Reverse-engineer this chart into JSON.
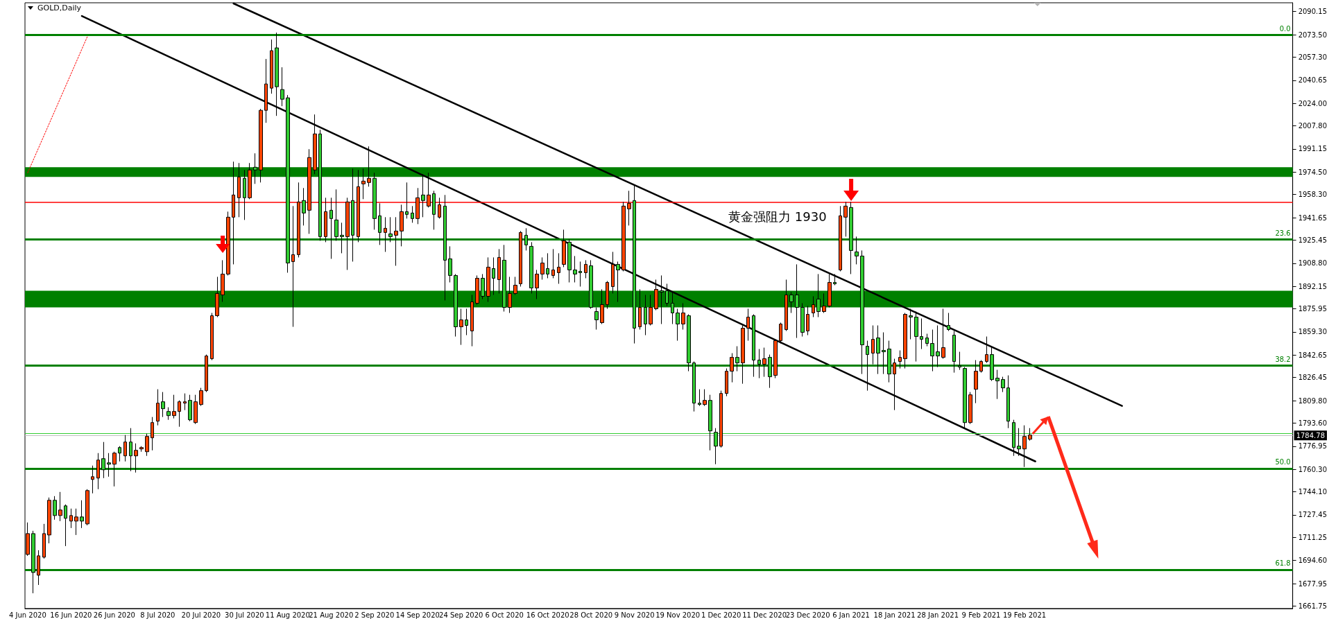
{
  "chart_data": {
    "type": "candlestick",
    "title": "GOLD,Daily",
    "categories": [
      "4 Jun 2020",
      null,
      null,
      null,
      null,
      null,
      null,
      null,
      "16 Jun 2020",
      null,
      null,
      null,
      null,
      null,
      null,
      null,
      "26 Jun 2020",
      null,
      null,
      null,
      null,
      null,
      null,
      null,
      "8 Jul 2020",
      null,
      null,
      null,
      null,
      null,
      null,
      null,
      "20 Jul 2020",
      null,
      null,
      null,
      null,
      null,
      null,
      null,
      "30 Jul 2020",
      null,
      null,
      null,
      null,
      null,
      null,
      null,
      "11 Aug 2020",
      null,
      null,
      null,
      null,
      null,
      null,
      null,
      "21 Aug 2020",
      null,
      null,
      null,
      null,
      null,
      null,
      null,
      "2 Sep 2020",
      null,
      null,
      null,
      null,
      null,
      null,
      null,
      "14 Sep 2020",
      null,
      null,
      null,
      null,
      null,
      null,
      null,
      "24 Sep 2020",
      null,
      null,
      null,
      null,
      null,
      null,
      null,
      "6 Oct 2020",
      null,
      null,
      null,
      null,
      null,
      null,
      null,
      "16 Oct 2020",
      null,
      null,
      null,
      null,
      null,
      null,
      null,
      "28 Oct 2020",
      null,
      null,
      null,
      null,
      null,
      null,
      null,
      "9 Nov 2020",
      null,
      null,
      null,
      null,
      null,
      null,
      null,
      "19 Nov 2020",
      null,
      null,
      null,
      null,
      null,
      null,
      null,
      "1 Dec 2020",
      null,
      null,
      null,
      null,
      null,
      null,
      null,
      "11 Dec 2020",
      null,
      null,
      null,
      null,
      null,
      null,
      null,
      "23 Dec 2020",
      null,
      null,
      null,
      null,
      null,
      null,
      null,
      "6 Jan 2021",
      null,
      null,
      null,
      null,
      null,
      null,
      null,
      "18 Jan 2021",
      null,
      null,
      null,
      null,
      null,
      null,
      null,
      "28 Jan 2021",
      null,
      null,
      null,
      null,
      null,
      null,
      null,
      "9 Feb 2021",
      null,
      null,
      null,
      null,
      null,
      null,
      null,
      "19 Feb 2021",
      null,
      null,
      null,
      null,
      null,
      null,
      null,
      null,
      null,
      null,
      null,
      null,
      null,
      null,
      null,
      null,
      null,
      null,
      null,
      null,
      null,
      null,
      null,
      null,
      null,
      null,
      null,
      null,
      null,
      null,
      null,
      null,
      null,
      null,
      null,
      null,
      null,
      null,
      null,
      null,
      null,
      null,
      null,
      null,
      null,
      null,
      null,
      null,
      null
    ],
    "ohlc": [
      [
        1699,
        1722,
        1698,
        1714
      ],
      [
        1714,
        1716,
        1671,
        1686
      ],
      [
        1684,
        1702,
        1677,
        1698
      ],
      [
        1697,
        1721,
        1696,
        1714
      ],
      [
        1713,
        1740,
        1707,
        1738
      ],
      [
        1738,
        1741,
        1724,
        1727
      ],
      [
        1727,
        1744,
        1723,
        1731
      ],
      [
        1734,
        1735,
        1705,
        1725
      ],
      [
        1723,
        1732,
        1718,
        1727
      ],
      [
        1723,
        1732,
        1713,
        1726
      ],
      [
        1726,
        1738,
        1718,
        1723
      ],
      [
        1721,
        1746,
        1720,
        1745
      ],
      [
        1753,
        1763,
        1743,
        1755
      ],
      [
        1754,
        1772,
        1746,
        1767
      ],
      [
        1768,
        1780,
        1754,
        1760
      ],
      [
        1765,
        1772,
        1755,
        1764
      ],
      [
        1764,
        1773,
        1748,
        1772
      ],
      [
        1776,
        1777,
        1766,
        1772
      ],
      [
        1770,
        1785,
        1766,
        1780
      ],
      [
        1780,
        1790,
        1759,
        1770
      ],
      [
        1770,
        1779,
        1758,
        1774
      ],
      [
        1775,
        1777,
        1773,
        1776
      ],
      [
        1773,
        1786,
        1770,
        1784
      ],
      [
        1783,
        1798,
        1774,
        1794
      ],
      [
        1795,
        1818,
        1792,
        1808
      ],
      [
        1809,
        1816,
        1798,
        1804
      ],
      [
        1802,
        1805,
        1796,
        1799
      ],
      [
        1799,
        1814,
        1797,
        1802
      ],
      [
        1802,
        1810,
        1791,
        1809
      ],
      [
        1808,
        1815,
        1803,
        1809
      ],
      [
        1810,
        1814,
        1795,
        1796
      ],
      [
        1794,
        1814,
        1793,
        1809
      ],
      [
        1807,
        1819,
        1806,
        1817
      ],
      [
        1817,
        1843,
        1816,
        1842
      ],
      [
        1840,
        1873,
        1839,
        1871
      ],
      [
        1871,
        1899,
        1870,
        1887
      ],
      [
        1886,
        1911,
        1881,
        1901
      ],
      [
        1901,
        1946,
        1900,
        1942
      ],
      [
        1942,
        1982,
        1908,
        1958
      ],
      [
        1956,
        1981,
        1942,
        1971
      ],
      [
        1970,
        1976,
        1940,
        1956
      ],
      [
        1956,
        1981,
        1955,
        1976
      ],
      [
        1978,
        1988,
        1966,
        1976
      ],
      [
        1976,
        2020,
        1967,
        2019
      ],
      [
        2019,
        2056,
        2010,
        2038
      ],
      [
        2035,
        2070,
        2031,
        2062
      ],
      [
        2064,
        2075,
        2015,
        2036
      ],
      [
        2034,
        2050,
        2022,
        2027
      ],
      [
        2028,
        2030,
        1902,
        1909
      ],
      [
        1910,
        1950,
        1863,
        1915
      ],
      [
        1915,
        1967,
        1913,
        1953
      ],
      [
        1954,
        1963,
        1936,
        1945
      ],
      [
        1947,
        1991,
        1930,
        1985
      ],
      [
        1976,
        2016,
        1973,
        2002
      ],
      [
        2002,
        2005,
        1925,
        1928
      ],
      [
        1928,
        1956,
        1924,
        1946
      ],
      [
        1947,
        1956,
        1912,
        1941
      ],
      [
        1940,
        1962,
        1925,
        1928
      ],
      [
        1929,
        1938,
        1916,
        1928
      ],
      [
        1928,
        1956,
        1904,
        1953
      ],
      [
        1954,
        1977,
        1910,
        1929
      ],
      [
        1928,
        1976,
        1924,
        1964
      ],
      [
        1966,
        1977,
        1955,
        1968
      ],
      [
        1967,
        1993,
        1964,
        1970
      ],
      [
        1970,
        1974,
        1933,
        1941
      ],
      [
        1943,
        1952,
        1922,
        1931
      ],
      [
        1931,
        1942,
        1917,
        1934
      ],
      [
        1930,
        1942,
        1924,
        1928
      ],
      [
        1929,
        1942,
        1907,
        1932
      ],
      [
        1932,
        1951,
        1921,
        1946
      ],
      [
        1946,
        1967,
        1941,
        1944
      ],
      [
        1945,
        1950,
        1938,
        1941
      ],
      [
        1941,
        1963,
        1937,
        1956
      ],
      [
        1958,
        1973,
        1942,
        1954
      ],
      [
        1950,
        1974,
        1949,
        1958
      ],
      [
        1959,
        1961,
        1933,
        1944
      ],
      [
        1942,
        1956,
        1941,
        1951
      ],
      [
        1950,
        1958,
        1882,
        1911
      ],
      [
        1912,
        1921,
        1895,
        1900
      ],
      [
        1900,
        1901,
        1856,
        1863
      ],
      [
        1863,
        1876,
        1850,
        1868
      ],
      [
        1868,
        1876,
        1857,
        1864
      ],
      [
        1860,
        1886,
        1849,
        1881
      ],
      [
        1880,
        1900,
        1879,
        1898
      ],
      [
        1898,
        1901,
        1883,
        1885
      ],
      [
        1885,
        1913,
        1881,
        1906
      ],
      [
        1905,
        1913,
        1886,
        1898
      ],
      [
        1897,
        1919,
        1887,
        1913
      ],
      [
        1911,
        1922,
        1874,
        1877
      ],
      [
        1877,
        1899,
        1873,
        1887
      ],
      [
        1887,
        1899,
        1886,
        1893
      ],
      [
        1894,
        1932,
        1892,
        1931
      ],
      [
        1929,
        1934,
        1918,
        1922
      ],
      [
        1921,
        1924,
        1887,
        1891
      ],
      [
        1891,
        1904,
        1883,
        1901
      ],
      [
        1901,
        1913,
        1897,
        1909
      ],
      [
        1905,
        1916,
        1898,
        1901
      ],
      [
        1900,
        1919,
        1898,
        1904
      ],
      [
        1902,
        1916,
        1894,
        1906
      ],
      [
        1908,
        1933,
        1906,
        1925
      ],
      [
        1924,
        1926,
        1895,
        1904
      ],
      [
        1904,
        1914,
        1895,
        1901
      ],
      [
        1903,
        1910,
        1892,
        1902
      ],
      [
        1902,
        1911,
        1898,
        1908
      ],
      [
        1907,
        1911,
        1876,
        1877
      ],
      [
        1874,
        1877,
        1861,
        1868
      ],
      [
        1866,
        1890,
        1865,
        1879
      ],
      [
        1879,
        1896,
        1876,
        1895
      ],
      [
        1892,
        1917,
        1887,
        1908
      ],
      [
        1908,
        1910,
        1881,
        1904
      ],
      [
        1904,
        1953,
        1903,
        1950
      ],
      [
        1948,
        1961,
        1936,
        1952
      ],
      [
        1954,
        1965,
        1851,
        1862
      ],
      [
        1863,
        1890,
        1861,
        1877
      ],
      [
        1877,
        1886,
        1857,
        1865
      ],
      [
        1865,
        1886,
        1864,
        1877
      ],
      [
        1876,
        1897,
        1875,
        1890
      ],
      [
        1889,
        1900,
        1865,
        1888
      ],
      [
        1889,
        1894,
        1878,
        1880
      ],
      [
        1880,
        1888,
        1865,
        1873
      ],
      [
        1873,
        1876,
        1853,
        1865
      ],
      [
        1865,
        1880,
        1861,
        1873
      ],
      [
        1871,
        1872,
        1831,
        1837
      ],
      [
        1837,
        1838,
        1802,
        1808
      ],
      [
        1808,
        1818,
        1806,
        1807
      ],
      [
        1807,
        1818,
        1806,
        1810
      ],
      [
        1810,
        1814,
        1774,
        1788
      ],
      [
        1787,
        1790,
        1764,
        1777
      ],
      [
        1777,
        1817,
        1776,
        1815
      ],
      [
        1815,
        1833,
        1813,
        1831
      ],
      [
        1831,
        1844,
        1823,
        1841
      ],
      [
        1841,
        1849,
        1831,
        1837
      ],
      [
        1837,
        1864,
        1822,
        1862
      ],
      [
        1862,
        1876,
        1853,
        1870
      ],
      [
        1871,
        1872,
        1827,
        1839
      ],
      [
        1839,
        1847,
        1826,
        1836
      ],
      [
        1836,
        1848,
        1827,
        1840
      ],
      [
        1841,
        1843,
        1819,
        1827
      ],
      [
        1828,
        1854,
        1826,
        1853
      ],
      [
        1853,
        1866,
        1851,
        1865
      ],
      [
        1861,
        1897,
        1860,
        1886
      ],
      [
        1886,
        1888,
        1873,
        1881
      ],
      [
        1886,
        1908,
        1855,
        1877
      ],
      [
        1877,
        1880,
        1856,
        1859
      ],
      [
        1860,
        1878,
        1857,
        1872
      ],
      [
        1873,
        1885,
        1870,
        1879
      ],
      [
        1883,
        1901,
        1870,
        1874
      ],
      [
        1874,
        1887,
        1873,
        1878
      ],
      [
        1878,
        1901,
        1877,
        1895
      ],
      [
        1895,
        1901,
        1893,
        1894
      ],
      [
        1904,
        1950,
        1903,
        1943
      ],
      [
        1942,
        1953,
        1928,
        1950
      ],
      [
        1949,
        1953,
        1901,
        1918
      ],
      [
        1917,
        1928,
        1908,
        1914
      ],
      [
        1914,
        1918,
        1829,
        1850
      ],
      [
        1849,
        1853,
        1817,
        1843
      ],
      [
        1844,
        1864,
        1836,
        1854
      ],
      [
        1855,
        1864,
        1829,
        1844
      ],
      [
        1846,
        1859,
        1829,
        1845
      ],
      [
        1847,
        1853,
        1823,
        1829
      ],
      [
        1829,
        1840,
        1803,
        1837
      ],
      [
        1838,
        1846,
        1833,
        1841
      ],
      [
        1840,
        1873,
        1833,
        1872
      ],
      [
        1871,
        1876,
        1854,
        1870
      ],
      [
        1870,
        1874,
        1838,
        1856
      ],
      [
        1856,
        1869,
        1847,
        1854
      ],
      [
        1855,
        1858,
        1849,
        1851
      ],
      [
        1851,
        1861,
        1831,
        1842
      ],
      [
        1845,
        1864,
        1834,
        1842
      ],
      [
        1841,
        1876,
        1840,
        1848
      ],
      [
        1864,
        1873,
        1860,
        1861
      ],
      [
        1857,
        1860,
        1830,
        1838
      ],
      [
        1835,
        1845,
        1832,
        1834
      ],
      [
        1833,
        1834,
        1790,
        1794
      ],
      [
        1794,
        1816,
        1793,
        1814
      ],
      [
        1818,
        1839,
        1808,
        1831
      ],
      [
        1831,
        1839,
        1830,
        1838
      ],
      [
        1838,
        1856,
        1837,
        1843
      ],
      [
        1843,
        1849,
        1824,
        1825
      ],
      [
        1826,
        1832,
        1811,
        1824
      ],
      [
        1825,
        1827,
        1816,
        1819
      ],
      [
        1819,
        1828,
        1790,
        1795
      ],
      [
        1794,
        1796,
        1770,
        1776
      ],
      [
        1777,
        1790,
        1770,
        1775
      ],
      [
        1775,
        1792,
        1762,
        1784
      ],
      [
        1782,
        1790,
        1781,
        1785
      ],
      null,
      null,
      null,
      null,
      null,
      null,
      null,
      null,
      null,
      null,
      null,
      null,
      null,
      null,
      null,
      null,
      null,
      null,
      null,
      null,
      null,
      null,
      null,
      null,
      null,
      null,
      null,
      null,
      null,
      null,
      null,
      null,
      null,
      null,
      null,
      null,
      null,
      null,
      null,
      null,
      null,
      null,
      null,
      null,
      null,
      null,
      null,
      null
    ],
    "series": [
      {
        "type": "line",
        "color": "#000000",
        "values": [
          null,
          null,
          null,
          null,
          null,
          null,
          null,
          null,
          null,
          null,
          null,
          null,
          null,
          null,
          null,
          null,
          null,
          null,
          null,
          null,
          null,
          null,
          null,
          null,
          null,
          null,
          null,
          null,
          null,
          null,
          null,
          null,
          null,
          null,
          null,
          null,
          null,
          null,
          2096,
          null,
          null,
          null,
          null,
          null,
          null,
          null,
          null,
          null,
          null,
          null,
          null,
          null,
          null,
          null,
          null,
          null,
          null,
          null,
          null,
          null,
          null,
          null,
          null,
          null,
          null,
          null,
          null,
          null,
          null,
          null,
          null,
          null,
          null,
          null,
          null,
          null,
          null,
          null,
          null,
          null,
          null,
          null,
          null,
          null,
          null,
          null,
          null,
          null,
          null,
          null,
          null,
          null,
          null,
          null,
          null,
          null,
          null,
          null,
          null,
          null,
          null,
          null,
          null,
          null,
          null,
          null,
          null,
          null,
          null,
          null,
          null,
          null,
          null,
          null,
          null,
          null,
          null,
          null,
          null,
          null,
          null,
          null,
          null,
          null,
          null,
          null,
          null,
          null,
          null,
          null,
          null,
          null,
          null,
          null,
          null,
          null,
          null,
          null,
          null,
          null,
          null,
          null,
          null,
          null,
          null,
          null,
          null,
          null,
          null,
          null,
          null,
          null,
          null,
          null,
          null,
          null,
          null,
          null,
          null,
          null,
          null,
          null,
          null,
          null,
          null,
          null,
          null,
          null,
          null,
          null,
          null,
          null,
          null,
          null,
          null,
          null,
          null,
          null,
          null,
          null,
          null,
          null,
          null,
          null,
          null,
          null,
          null,
          null,
          null,
          null,
          null,
          null,
          null,
          null,
          null,
          null,
          null,
          null,
          null,
          null,
          null,
          null,
          1806,
          null,
          null,
          null,
          null,
          null,
          null,
          null,
          null,
          null,
          null,
          null,
          null,
          null,
          null,
          null,
          null,
          null,
          null,
          null,
          null,
          null,
          null,
          null,
          null,
          null,
          null,
          null,
          null,
          null,
          null,
          null
        ]
      },
      {
        "type": "line",
        "color": "#000000",
        "values": [
          null,
          null,
          null,
          null,
          null,
          null,
          null,
          null,
          null,
          null,
          2087,
          null,
          null,
          null,
          null,
          null,
          null,
          null,
          null,
          null,
          null,
          null,
          null,
          null,
          null,
          null,
          null,
          null,
          null,
          null,
          null,
          null,
          null,
          null,
          null,
          null,
          null,
          null,
          null,
          null,
          null,
          null,
          null,
          null,
          null,
          null,
          null,
          null,
          null,
          null,
          null,
          null,
          null,
          null,
          null,
          null,
          null,
          null,
          null,
          null,
          null,
          null,
          null,
          null,
          null,
          null,
          null,
          null,
          null,
          null,
          null,
          null,
          null,
          null,
          null,
          null,
          null,
          null,
          null,
          null,
          null,
          null,
          null,
          null,
          null,
          null,
          null,
          null,
          null,
          null,
          null,
          null,
          null,
          null,
          null,
          null,
          null,
          null,
          null,
          null,
          null,
          null,
          null,
          null,
          null,
          null,
          null,
          null,
          null,
          null,
          null,
          null,
          null,
          null,
          null,
          null,
          null,
          null,
          null,
          null,
          null,
          null,
          null,
          null,
          null,
          null,
          null,
          null,
          null,
          null,
          null,
          null,
          null,
          null,
          null,
          null,
          null,
          null,
          null,
          null,
          null,
          null,
          null,
          null,
          null,
          null,
          null,
          null,
          null,
          null,
          null,
          null,
          null,
          null,
          null,
          null,
          null,
          null,
          null,
          null,
          null,
          null,
          null,
          null,
          null,
          null,
          null,
          null,
          null,
          null,
          null,
          null,
          null,
          null,
          null,
          null,
          null,
          null,
          null,
          null,
          null,
          null,
          null,
          null,
          null,
          null,
          1766,
          null,
          null,
          null,
          null,
          null,
          null,
          null,
          null,
          null,
          null,
          null,
          null,
          null,
          null,
          null,
          null,
          null,
          null,
          null,
          null,
          null,
          null,
          null,
          null,
          null,
          null,
          null,
          null,
          null,
          null,
          null,
          null,
          null,
          null,
          null,
          null,
          null,
          null,
          null,
          null,
          null,
          null,
          null,
          null,
          null,
          null,
          null
        ]
      },
      {
        "type": "line",
        "color": "#ff0000",
        "line_style": "dotted",
        "values": [
          1974,
          null,
          null,
          null,
          null,
          null,
          null,
          null,
          null,
          null,
          null,
          2072,
          null,
          null,
          null,
          null,
          null,
          null,
          null,
          null,
          null,
          null,
          null,
          null,
          null,
          null,
          null,
          null,
          null,
          null,
          null,
          null,
          null,
          null,
          null,
          null,
          null,
          null,
          null,
          null,
          null,
          null,
          null,
          null,
          null,
          null,
          null,
          null,
          null,
          null,
          null,
          null,
          null,
          null,
          null,
          null,
          null,
          null,
          null,
          null,
          null,
          null,
          null,
          null,
          null,
          null,
          null,
          null,
          null,
          null,
          null,
          null,
          null,
          null,
          null,
          null,
          null,
          null,
          null,
          null,
          null,
          null,
          null,
          null,
          null,
          null,
          null,
          null,
          null,
          null,
          null,
          null,
          null,
          null,
          null,
          null,
          null,
          null,
          null,
          null,
          null,
          null,
          null,
          null,
          null,
          null,
          null,
          null,
          null,
          null,
          null,
          null,
          null,
          null,
          null,
          null,
          null,
          null,
          null,
          null,
          null,
          null,
          null,
          null,
          null,
          null,
          null,
          null,
          null,
          null,
          null,
          null,
          null,
          null,
          null,
          null,
          null,
          null,
          null,
          null,
          null,
          null,
          null,
          null,
          null,
          null,
          null,
          null,
          null,
          null,
          null,
          null,
          null,
          null,
          null,
          null,
          null,
          null,
          null,
          null,
          null,
          null,
          null,
          null,
          null,
          null,
          null,
          null,
          null,
          null,
          null,
          null,
          null,
          null,
          null,
          null,
          null,
          null,
          null,
          null,
          null,
          null,
          null,
          null,
          null,
          null,
          null,
          null,
          null,
          null,
          null,
          null,
          null,
          null,
          null,
          null,
          null,
          null,
          null,
          null,
          null,
          null,
          null,
          null,
          null,
          null,
          null,
          null,
          null,
          null,
          null,
          null,
          null,
          null,
          null,
          null,
          null,
          null,
          null,
          null,
          null,
          null,
          null,
          null,
          null,
          null,
          null,
          null,
          null,
          null,
          null,
          null,
          null,
          null
        ]
      }
    ],
    "marker": "none",
    "ylim": [
      1660,
      2096.5
    ],
    "yticks": [
      {
        "value": 2090.15,
        "label": "2090.15"
      },
      {
        "value": 2073.5,
        "label": "2073.50"
      },
      {
        "value": 2057.3,
        "label": "2057.30"
      },
      {
        "value": 2040.65,
        "label": "2040.65"
      },
      {
        "value": 2024,
        "label": "2024.00"
      },
      {
        "value": 2007.8,
        "label": "2007.80"
      },
      {
        "value": 1991.15,
        "label": "1991.15"
      },
      {
        "value": 1974.5,
        "label": "1974.50"
      },
      {
        "value": 1958.3,
        "label": "1958.30"
      },
      {
        "value": 1941.65,
        "label": "1941.65"
      },
      {
        "value": 1925.45,
        "label": "1925.45"
      },
      {
        "value": 1908.8,
        "label": "1908.80"
      },
      {
        "value": 1892.15,
        "label": "1892.15"
      },
      {
        "value": 1875.95,
        "label": "1875.95"
      },
      {
        "value": 1859.3,
        "label": "1859.30"
      },
      {
        "value": 1842.65,
        "label": "1842.65"
      },
      {
        "value": 1826.45,
        "label": "1826.45"
      },
      {
        "value": 1809.8,
        "label": "1809.80"
      },
      {
        "value": 1793.6,
        "label": "1793.60"
      },
      {
        "value": 1776.95,
        "label": "1776.95"
      },
      {
        "value": 1760.3,
        "label": "1760.30"
      },
      {
        "value": 1744.1,
        "label": "1744.10"
      },
      {
        "value": 1727.45,
        "label": "1727.45"
      },
      {
        "value": 1711.25,
        "label": "1711.25"
      },
      {
        "value": 1694.6,
        "label": "1694.60"
      },
      {
        "value": 1677.95,
        "label": "1677.95"
      },
      {
        "value": 1661.75,
        "label": "1661.75"
      }
    ],
    "annotations": [
      {
        "text": "0.0",
        "y": 2073.5
      },
      {
        "text": "23.6",
        "y": 1926
      },
      {
        "text": "38.2",
        "y": 1835
      },
      {
        "text": "50.0",
        "y": 1761
      },
      {
        "text": "61.8",
        "y": 1688
      }
    ],
    "ref_lines": [
      {
        "axis": "y",
        "value": 2073.5,
        "color": "#008000"
      },
      {
        "axis": "y",
        "value": 1926,
        "color": "#008000"
      },
      {
        "axis": "y",
        "value": 1835,
        "color": "#008000"
      },
      {
        "axis": "y",
        "value": 1761,
        "color": "#008000"
      },
      {
        "axis": "y",
        "value": 1688,
        "color": "#008000"
      },
      {
        "axis": "y",
        "value": 1953,
        "label": "黄金强阻力 1930",
        "color": "#ff0000"
      },
      {
        "axis": "y",
        "value": 1786,
        "color": "#32cd32"
      },
      {
        "axis": "y",
        "value": 1784.78,
        "label": "1784.78",
        "color": "#c0c0c0"
      }
    ],
    "bands": [
      {
        "axis": "y",
        "from": 1971,
        "to": 1978,
        "color": "#008000"
      },
      {
        "axis": "y",
        "from": 1877,
        "to": 1889,
        "color": "#008000"
      }
    ],
    "grid": false
  }
}
